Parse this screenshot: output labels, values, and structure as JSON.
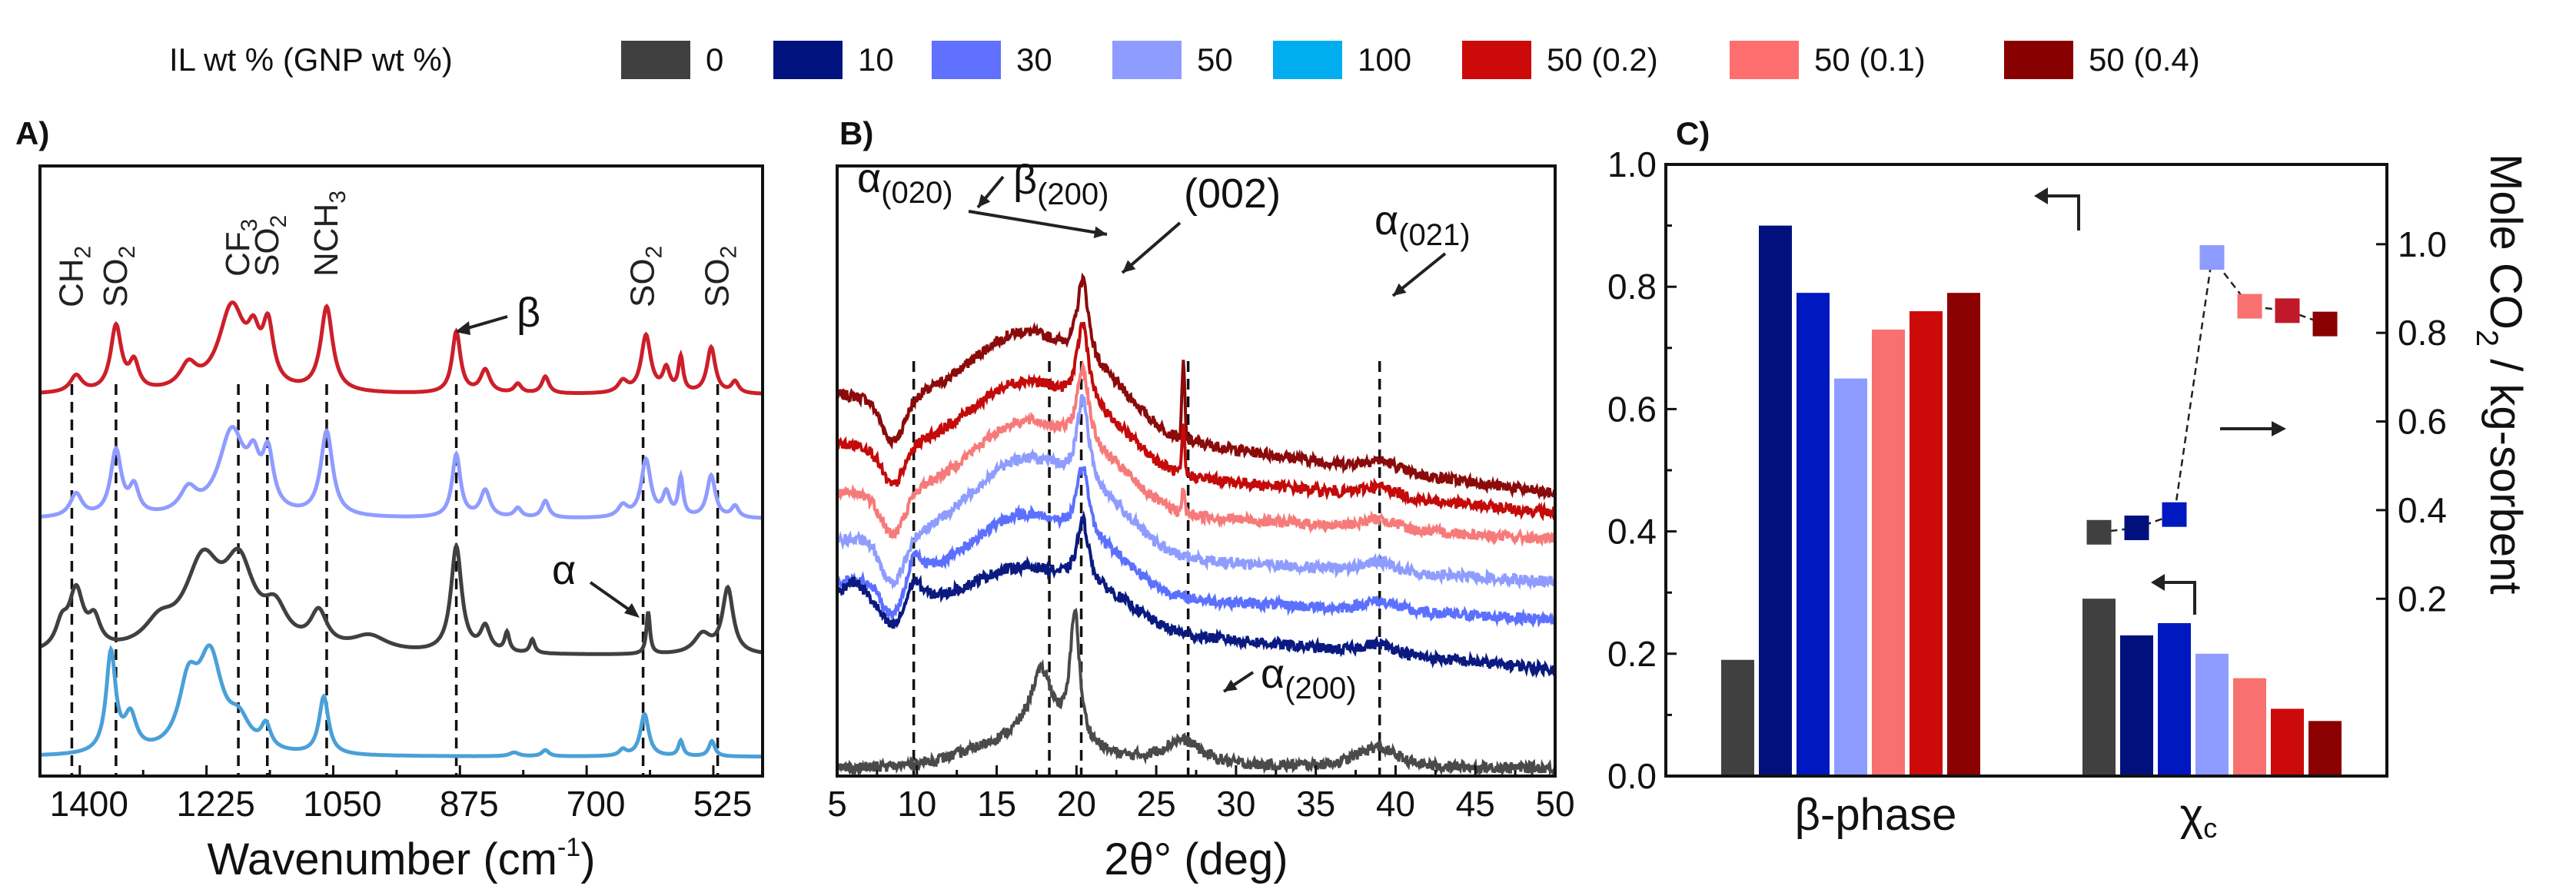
{
  "legend": {
    "title": "IL wt % (GNP wt %)",
    "items": [
      {
        "label": "0",
        "color": "#404040"
      },
      {
        "label": "10",
        "color": "#00137f"
      },
      {
        "label": "30",
        "color": "#6070ff"
      },
      {
        "label": "50",
        "color": "#8f9cff"
      },
      {
        "label": "100",
        "color": "#00aeef"
      },
      {
        "label": "50 (0.2)",
        "color": "#cc0a0a"
      },
      {
        "label": "50 (0.1)",
        "color": "#ff6f6f"
      },
      {
        "label": "50 (0.4)",
        "color": "#880000"
      }
    ]
  },
  "chart_data": [
    {
      "panel": "A)",
      "type": "line",
      "xlabel": "Wavenumber (cm",
      "xlabel_sup": "-1",
      "xlabel_end": ")",
      "xlim": [
        1455,
        457
      ],
      "ylim": [
        0,
        7.95
      ],
      "xticks": [
        1400,
        1225,
        1050,
        875,
        700,
        525
      ],
      "minor_xticks": [
        1312.5,
        1137.5,
        962.5,
        787.5,
        612.5
      ],
      "annotations": [
        {
          "text": "CH",
          "sub": "2",
          "x": 1411
        },
        {
          "text": "SO",
          "sub": "2",
          "x": 1350
        },
        {
          "text": "CF",
          "sub": "3",
          "x": 1181
        },
        {
          "text": "SO",
          "sub": "2",
          "x": 1141
        },
        {
          "text": "NCH",
          "sub": "3",
          "x": 1059
        },
        {
          "text": "SO",
          "sub": "2",
          "x": 622
        },
        {
          "text": "SO",
          "sub": "2",
          "x": 519
        }
      ],
      "dashed_x": [
        1411,
        1350,
        1181,
        1141,
        1059,
        880,
        622,
        519
      ],
      "beta_label": "β",
      "alpha_label": "α",
      "series": [
        {
          "name": "50 (0.2)",
          "color": "#cc1f2a",
          "offset": 4.97,
          "peaks": [
            [
              1405,
              0.22,
              10
            ],
            [
              1350,
              0.85,
              9
            ],
            [
              1325,
              0.35,
              8
            ],
            [
              1250,
              0.3,
              14
            ],
            [
              1190,
              1.1,
              22
            ],
            [
              1160,
              0.5,
              10
            ],
            [
              1140,
              0.75,
              9
            ],
            [
              1059,
              1.1,
              10
            ],
            [
              880,
              0.8,
              7
            ],
            [
              840,
              0.3,
              8
            ],
            [
              795,
              0.12,
              6
            ],
            [
              757,
              0.22,
              6
            ],
            [
              650,
              0.15,
              8
            ],
            [
              618,
              0.75,
              8
            ],
            [
              590,
              0.3,
              6
            ],
            [
              570,
              0.45,
              4
            ],
            [
              528,
              0.6,
              7
            ],
            [
              495,
              0.15,
              6
            ]
          ]
        },
        {
          "name": "50",
          "color": "#8f9cff",
          "offset": 3.35,
          "peaks": [
            [
              1405,
              0.3,
              10
            ],
            [
              1350,
              0.85,
              9
            ],
            [
              1325,
              0.35,
              8
            ],
            [
              1250,
              0.3,
              14
            ],
            [
              1190,
              1.1,
              22
            ],
            [
              1160,
              0.5,
              10
            ],
            [
              1140,
              0.7,
              9
            ],
            [
              1059,
              1.1,
              10
            ],
            [
              880,
              0.82,
              7
            ],
            [
              840,
              0.35,
              8
            ],
            [
              795,
              0.12,
              6
            ],
            [
              757,
              0.22,
              6
            ],
            [
              650,
              0.15,
              8
            ],
            [
              618,
              0.75,
              8
            ],
            [
              590,
              0.3,
              6
            ],
            [
              570,
              0.5,
              4
            ],
            [
              528,
              0.55,
              7
            ],
            [
              495,
              0.15,
              6
            ]
          ]
        },
        {
          "name": "0",
          "color": "#404040",
          "offset": 1.57,
          "peaks": [
            [
              1425,
              0.3,
              10
            ],
            [
              1405,
              0.75,
              12
            ],
            [
              1380,
              0.35,
              10
            ],
            [
              1290,
              0.3,
              25
            ],
            [
              1230,
              1.1,
              30
            ],
            [
              1180,
              1.0,
              25
            ],
            [
              1130,
              0.45,
              20
            ],
            [
              1070,
              0.45,
              14
            ],
            [
              1000,
              0.2,
              30
            ],
            [
              880,
              1.38,
              9
            ],
            [
              840,
              0.32,
              8
            ],
            [
              810,
              0.25,
              4
            ],
            [
              775,
              0.18,
              4
            ],
            [
              615,
              0.55,
              3
            ],
            [
              540,
              0.25,
              14
            ],
            [
              505,
              0.85,
              9
            ]
          ]
        },
        {
          "name": "100",
          "color": "#4aa0d8",
          "offset": 0.25,
          "peaks": [
            [
              1357,
              1.3,
              8
            ],
            [
              1330,
              0.45,
              10
            ],
            [
              1250,
              0.8,
              16
            ],
            [
              1220,
              1.2,
              20
            ],
            [
              1180,
              0.35,
              18
            ],
            [
              1143,
              0.3,
              8
            ],
            [
              1063,
              0.75,
              8
            ],
            [
              800,
              0.05,
              8
            ],
            [
              757,
              0.08,
              6
            ],
            [
              650,
              0.08,
              6
            ],
            [
              620,
              0.55,
              7
            ],
            [
              570,
              0.2,
              4
            ],
            [
              527,
              0.2,
              5
            ]
          ]
        }
      ]
    },
    {
      "panel": "B)",
      "type": "line",
      "xlabel": "2θ° (deg)",
      "xlim": [
        5,
        50
      ],
      "ylim": [
        0,
        8
      ],
      "xticks": [
        5,
        10,
        15,
        20,
        25,
        30,
        35,
        40,
        45,
        50
      ],
      "dashed_x": [
        9.8,
        18.3,
        20.3,
        27.0,
        39.0
      ],
      "annotations": [
        {
          "text": "α",
          "sub": "(020)"
        },
        {
          "text": "β",
          "sub": "(200)"
        },
        {
          "text": "(002)",
          "sub": ""
        },
        {
          "text": "α",
          "sub": "(021)"
        },
        {
          "text": "α",
          "sub": "(200)"
        }
      ],
      "series": [
        {
          "name": "50 (0.4)",
          "color": "#8b0a0a",
          "left": 5.0,
          "right": 3.7,
          "hump": 1.15,
          "beta": 1.1,
          "gnp": 1.0,
          "extra": []
        },
        {
          "name": "50 (0.2)",
          "color": "#c40a0a",
          "left": 4.35,
          "right": 3.45,
          "hump": 1.05,
          "beta": 1.1,
          "gnp": 0.6,
          "extra": []
        },
        {
          "name": "50 (0.1)",
          "color": "#f77a7a",
          "left": 3.7,
          "right": 3.1,
          "hump": 1.1,
          "beta": 1.05,
          "gnp": 0.3,
          "extra": []
        },
        {
          "name": "50",
          "color": "#8f9cff",
          "left": 3.1,
          "right": 2.55,
          "hump": 1.2,
          "beta": 1.15,
          "gnp": 0,
          "extra": []
        },
        {
          "name": "30",
          "color": "#5c70ff",
          "left": 2.55,
          "right": 2.05,
          "hump": 1.0,
          "beta": 0.95,
          "gnp": 0,
          "extra": [
            [
              9.8,
              0.35,
              0.6
            ]
          ]
        },
        {
          "name": "10",
          "color": "#0a1a80",
          "left": 2.25,
          "right": 1.4,
          "hump": 0.7,
          "beta": 0.85,
          "gnp": 0,
          "extra": [
            [
              9.8,
              0.35,
              0.6
            ],
            [
              6.0,
              0.3,
              1.0
            ]
          ]
        },
        {
          "name": "0",
          "color": "#4a4a4a",
          "left": 0.1,
          "right": 0.1,
          "hump": 0.35,
          "beta": 0,
          "gnp": 0,
          "extra": [
            [
              17.8,
              0.9,
              0.9
            ],
            [
              19.9,
              1.7,
              0.35
            ],
            [
              26.6,
              0.35,
              1.6
            ],
            [
              38.5,
              0.15,
              2.0
            ]
          ]
        }
      ]
    },
    {
      "panel": "C)",
      "type": "bar",
      "categories": [
        "β-phase",
        "χ"
      ],
      "category_sub": [
        "",
        "c"
      ],
      "series_names": [
        "0",
        "10",
        "30",
        "50",
        "50 (0.1)",
        "50 (0.2)",
        "50 (0.4)"
      ],
      "colors": [
        "#404040",
        "#00117d",
        "#0018c0",
        "#8f9cff",
        "#f87070",
        "#cc0a0a",
        "#8b0000"
      ],
      "values": {
        "beta_phase": [
          0.19,
          0.9,
          0.79,
          0.65,
          0.73,
          0.76,
          0.79
        ],
        "xc": [
          0.29,
          0.23,
          0.25,
          0.2,
          0.16,
          0.11,
          0.09
        ]
      },
      "ylim_left": [
        0,
        1.0
      ],
      "yticks_left": [
        "0.0",
        "0.2",
        "0.4",
        "0.6",
        "0.8",
        "1.0"
      ],
      "ylabel_right": "Mole CO",
      "ylabel_right_sub": "2",
      "ylabel_right_end": " / kg-sorbent",
      "ylim_right": [
        -0.2,
        1.18
      ],
      "yticks_right": [
        "0.2",
        "0.4",
        "0.6",
        "0.8",
        "1.0"
      ],
      "co2_uptake": {
        "values": [
          0.35,
          0.36,
          0.39,
          0.97,
          0.86,
          0.85,
          0.82
        ],
        "colors": [
          "#404040",
          "#00117d",
          "#0018c0",
          "#8f9cff",
          "#f87070",
          "#c01a2a",
          "#8b0000"
        ]
      }
    }
  ]
}
